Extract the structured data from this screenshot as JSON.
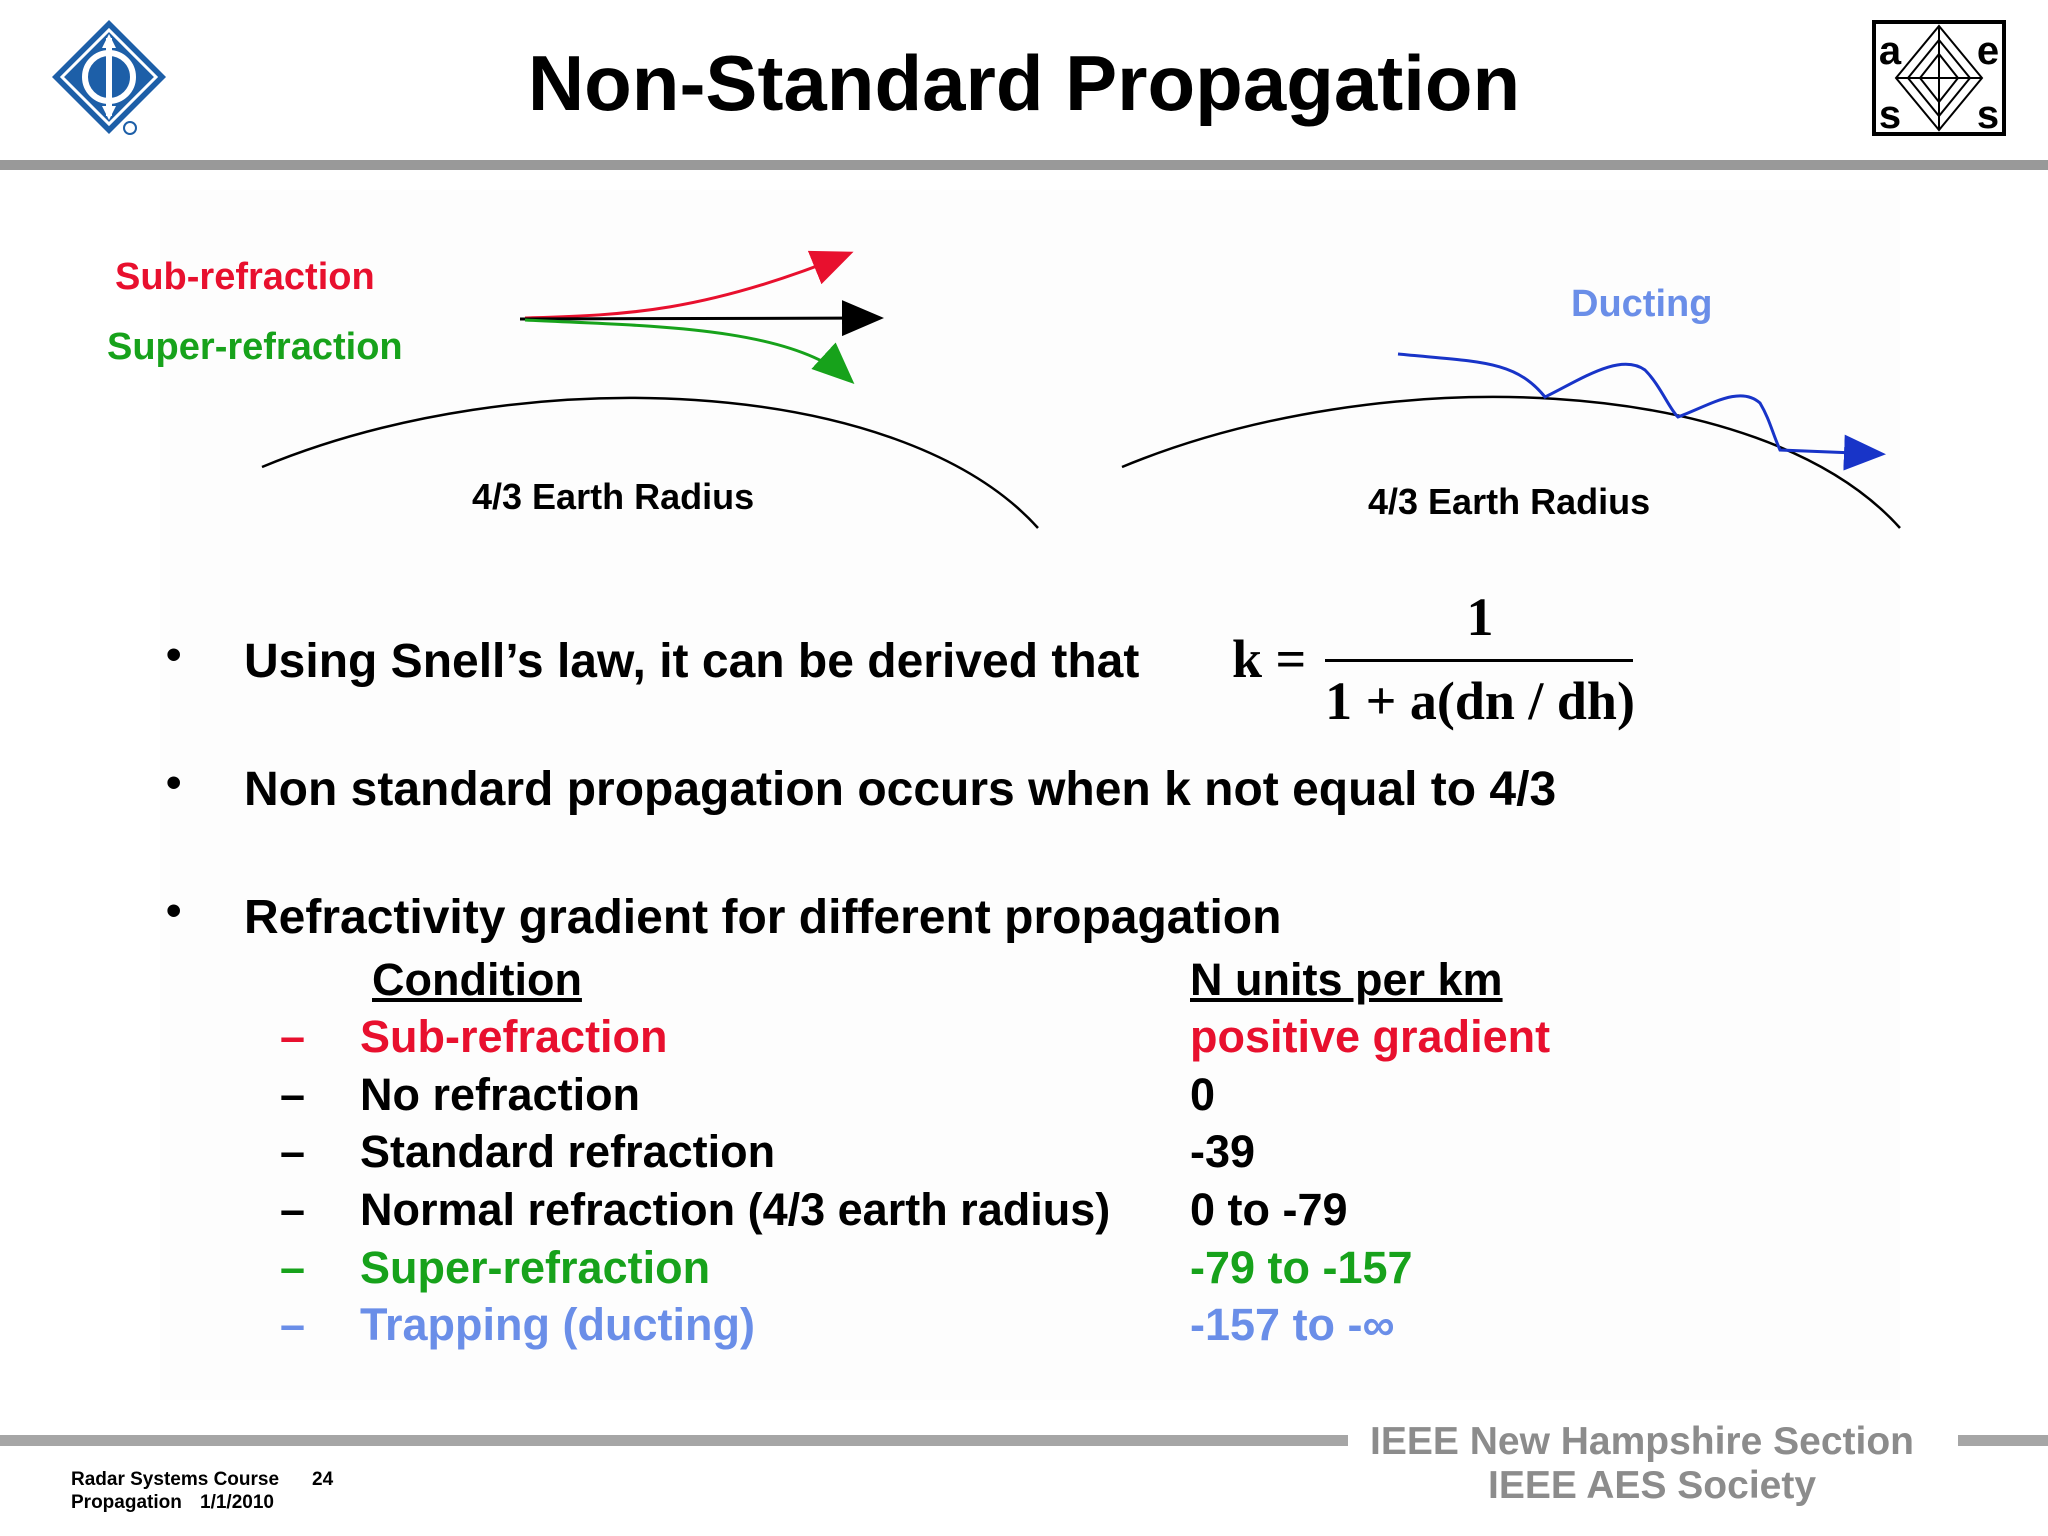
{
  "slide": {
    "title": "Non-Standard Propagation"
  },
  "logos": {
    "left": "ieee-logo",
    "right": {
      "name": "aes-logo",
      "letters": [
        "a",
        "e",
        "s",
        "s"
      ]
    }
  },
  "diagram": {
    "sub_refraction_label": "Sub-refraction",
    "super_refraction_label": "Super-refraction",
    "ducting_label": "Ducting",
    "left_radius_label": "4/3 Earth Radius",
    "right_radius_label": "4/3 Earth Radius",
    "colors": {
      "sub": "#e8102e",
      "super": "#17a21b",
      "ducting": "#6a8ee8",
      "ducting_line": "#1834c8"
    }
  },
  "bullets": {
    "b1": "Using Snell’s law, it can be derived that",
    "b2": "Non standard propagation occurs when k not equal to 4/3",
    "b3": "Refractivity gradient for different propagation"
  },
  "formula": {
    "lhs": "k =",
    "numerator": "1",
    "denominator": "1 + a(dn / dh)"
  },
  "table": {
    "header_condition": "Condition",
    "header_units": "N units per km",
    "dash": "–",
    "rows": [
      {
        "condition": "Sub-refraction",
        "value": "positive gradient",
        "color": "#e8102e"
      },
      {
        "condition": "No refraction",
        "value": "0",
        "color": "#000000"
      },
      {
        "condition": "Standard refraction",
        "value": "-39",
        "color": "#000000"
      },
      {
        "condition": "Normal refraction (4/3 earth radius)",
        "value": "0 to -79",
        "color": "#000000"
      },
      {
        "condition": "Super-refraction",
        "value": "-79 to -157",
        "color": "#17a21b"
      },
      {
        "condition": "Trapping (ducting)",
        "value": "-157 to -∞",
        "color": "#6a8ee8"
      }
    ]
  },
  "footer": {
    "org_line1": "IEEE New Hampshire Section",
    "org_line2": "IEEE AES Society",
    "course": "Radar Systems Course",
    "page": "24",
    "topic": "Propagation",
    "date": "1/1/2010"
  }
}
